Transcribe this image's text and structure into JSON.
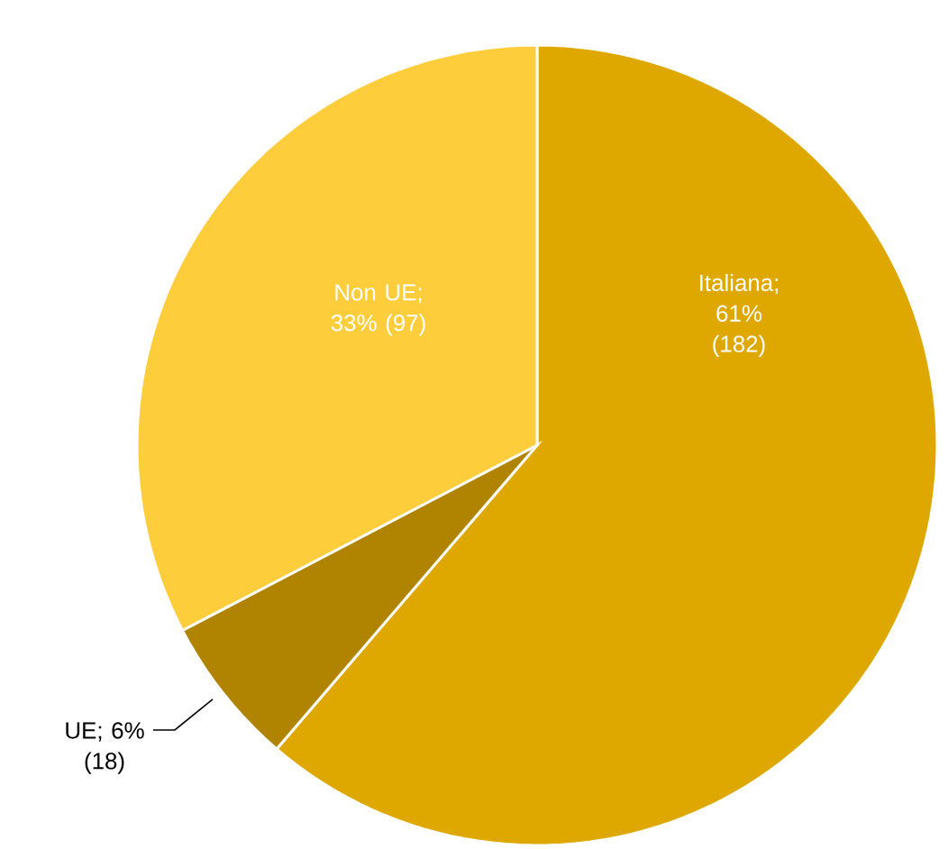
{
  "chart_data": {
    "type": "pie",
    "categories": [
      null,
      null,
      null
    ],
    "values": [
      182,
      18,
      97
    ],
    "value_labels": [
      "Italiana; 61% (182)",
      "UE; 6% (18)",
      "Non UE; 33% (97)"
    ],
    "colors": [
      "#dfa800",
      "#b08400",
      "#fdcd3c"
    ]
  }
}
